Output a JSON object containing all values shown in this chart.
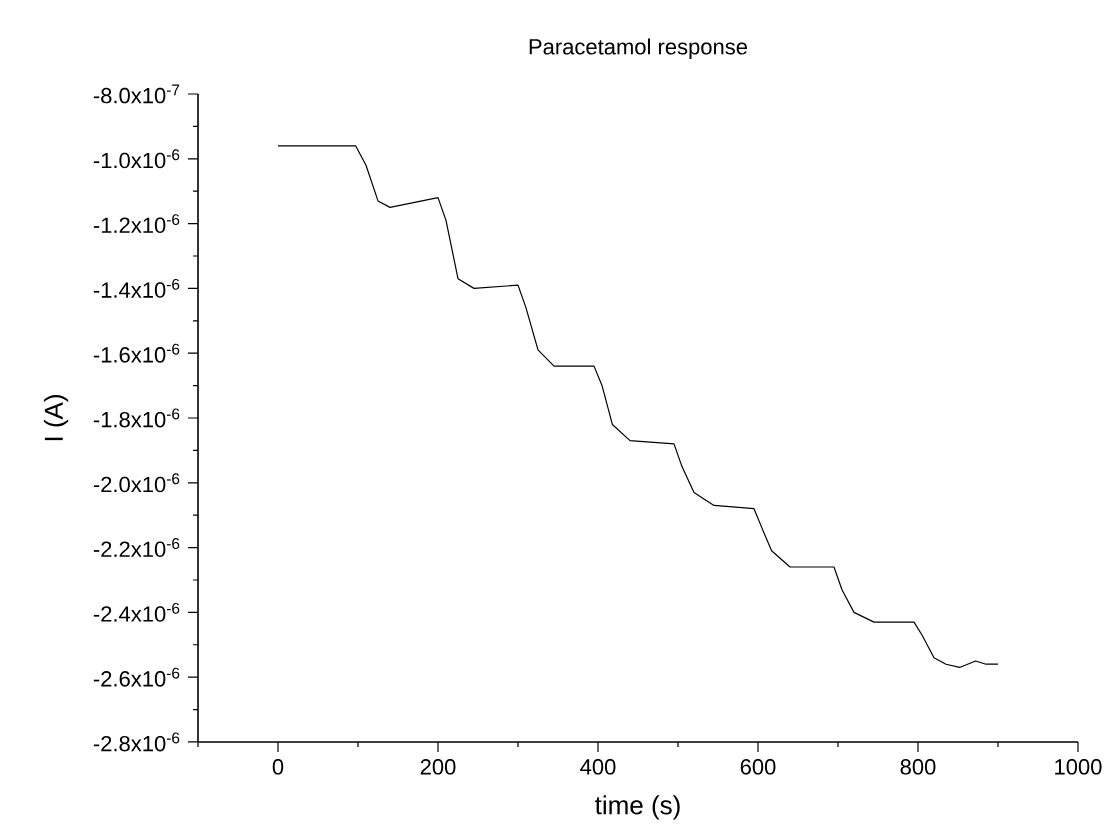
{
  "chart_data": {
    "type": "line",
    "title": "Paracetamol response",
    "xlabel": "time (s)",
    "ylabel": "I (A)",
    "x": [
      0,
      97,
      110,
      125,
      140,
      200,
      210,
      225,
      245,
      300,
      310,
      325,
      345,
      370,
      395,
      405,
      418,
      440,
      495,
      505,
      520,
      545,
      595,
      605,
      617,
      640,
      695,
      705,
      720,
      745,
      770,
      795,
      805,
      820,
      835,
      852,
      872,
      885,
      900
    ],
    "series": [
      {
        "color": "#000000",
        "values": [
          -9.6e-07,
          -9.6e-07,
          -1.02e-06,
          -1.13e-06,
          -1.15e-06,
          -1.12e-06,
          -1.19e-06,
          -1.37e-06,
          -1.4e-06,
          -1.39e-06,
          -1.46e-06,
          -1.59e-06,
          -1.64e-06,
          -1.64e-06,
          -1.64e-06,
          -1.7e-06,
          -1.82e-06,
          -1.87e-06,
          -1.88e-06,
          -1.95e-06,
          -2.03e-06,
          -2.07e-06,
          -2.08e-06,
          -2.14e-06,
          -2.21e-06,
          -2.26e-06,
          -2.26e-06,
          -2.33e-06,
          -2.4e-06,
          -2.43e-06,
          -2.43e-06,
          -2.43e-06,
          -2.47e-06,
          -2.54e-06,
          -2.56e-06,
          -2.57e-06,
          -2.55e-06,
          -2.56e-06,
          -2.56e-06
        ]
      }
    ],
    "xlim": [
      -100,
      1000
    ],
    "xticks": [
      {
        "value": -100,
        "label": null
      },
      0,
      {
        "value": 100,
        "label": null
      },
      200,
      {
        "value": 300,
        "label": null
      },
      400,
      {
        "value": 500,
        "label": null
      },
      600,
      {
        "value": 700,
        "label": null
      },
      800,
      {
        "value": 900,
        "label": null
      },
      1000
    ],
    "ylim": [
      -2.8e-06,
      -8e-07
    ],
    "yticks": [
      {
        "value": -8e-07,
        "label": "-8.0x10$^{-7}$"
      },
      {
        "value": -9e-07,
        "label": null
      },
      {
        "value": -1e-06,
        "label": "-1.0x10$^{-6}$"
      },
      {
        "value": -1.1e-06,
        "label": null
      },
      {
        "value": -1.2e-06,
        "label": "-1.2x10$^{-6}$"
      },
      {
        "value": -1.3e-06,
        "label": null
      },
      {
        "value": -1.4e-06,
        "label": "-1.4x10$^{-6}$"
      },
      {
        "value": -1.5e-06,
        "label": null
      },
      {
        "value": -1.6e-06,
        "label": "-1.6x10$^{-6}$"
      },
      {
        "value": -1.7e-06,
        "label": null
      },
      {
        "value": -1.8e-06,
        "label": "-1.8x10$^{-6}$"
      },
      {
        "value": -1.9e-06,
        "label": null
      },
      {
        "value": -2e-06,
        "label": "-2.0x10$^{-6}$"
      },
      {
        "value": -2.1e-06,
        "label": null
      },
      {
        "value": -2.2e-06,
        "label": "-2.2x10$^{-6}$"
      },
      {
        "value": -2.3e-06,
        "label": null
      },
      {
        "value": -2.4e-06,
        "label": "-2.4x10$^{-6}$"
      },
      {
        "value": -2.5e-06,
        "label": null
      },
      {
        "value": -2.6e-06,
        "label": "-2.6x10$^{-6}$"
      },
      {
        "value": -2.7e-06,
        "label": null
      },
      {
        "value": -2.8e-06,
        "label": "-2.8x10$^{-6}$"
      }
    ],
    "marker": "none",
    "line_style": "solid"
  }
}
